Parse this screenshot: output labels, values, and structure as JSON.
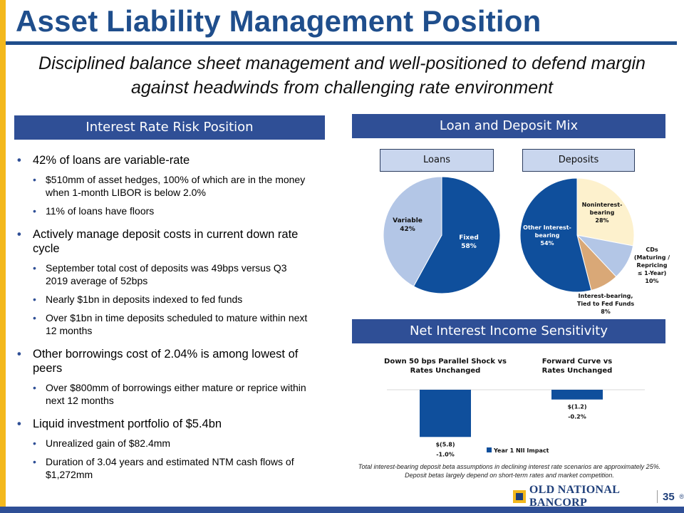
{
  "title": "Asset Liability Management Position",
  "subtitle": "Disciplined balance sheet management and well-positioned to defend margin against headwinds from challenging rate environment",
  "headers": {
    "interest_rate_risk": "Interest Rate Risk Position",
    "loan_deposit_mix": "Loan and Deposit Mix",
    "nii_sensitivity": "Net Interest Income Sensitivity"
  },
  "bullets": [
    {
      "text": "42% of loans are variable-rate",
      "subs": [
        "$510mm of asset hedges, 100% of which are in the money when 1-month LIBOR is below 2.0%",
        "11% of loans have floors"
      ]
    },
    {
      "text": "Actively manage deposit costs in current down rate cycle",
      "subs": [
        "September total cost of deposits was 49bps versus Q3 2019 average of 52bps",
        "Nearly $1bn in deposits indexed to fed funds",
        "Over $1bn in time deposits scheduled to mature within next 12 months"
      ]
    },
    {
      "text": "Other borrowings cost of 2.04% is among lowest of peers",
      "subs": [
        "Over $800mm of borrowings either mature or reprice within next 12 months"
      ]
    },
    {
      "text": "Liquid investment portfolio of $5.4bn",
      "subs": [
        "Unrealized gain of $82.4mm",
        "Duration of 3.04 years and estimated NTM cash flows of $1,272mm"
      ]
    }
  ],
  "chart_data": [
    {
      "type": "pie",
      "title": "Loans",
      "slices": [
        {
          "label": "Fixed",
          "value": 58,
          "display": "58%",
          "color": "#0f4f9c"
        },
        {
          "label": "Variable",
          "value": 42,
          "display": "42%",
          "color": "#b3c6e6"
        }
      ]
    },
    {
      "type": "pie",
      "title": "Deposits",
      "slices": [
        {
          "label": "Noninterest-bearing",
          "value": 28,
          "display": "28%",
          "color": "#fdf1cd"
        },
        {
          "label": "CDs (Maturing / Repricing ≤ 1-Year)",
          "value": 10,
          "display": "10%",
          "color": "#b3c6e6"
        },
        {
          "label": "Interest-bearing, Tied to Fed Funds",
          "value": 8,
          "display": "8%",
          "color": "#d9a877"
        },
        {
          "label": "Other Interest-bearing",
          "value": 54,
          "display": "54%",
          "color": "#0f4f9c"
        }
      ]
    },
    {
      "type": "bar",
      "categories": [
        "Down 50 bps Parallel Shock vs Rates Unchanged",
        "Forward Curve vs Rates Unchanged"
      ],
      "series": [
        {
          "name": "Year 1 NII Impact",
          "values": [
            -5.8,
            -1.2
          ],
          "color": "#0f4f9c"
        }
      ],
      "value_labels": [
        "$(5.8)",
        "$(1.2)"
      ],
      "pct_labels": [
        "-1.0%",
        "-0.2%"
      ],
      "ylim": [
        -7,
        0
      ]
    }
  ],
  "footnote": "Total interest-bearing deposit beta assumptions in declining interest rate scenarios are approximately 25%.  Deposit betas largely depend on short-term rates and market competition.",
  "footer": {
    "logo_text": "OLD NATIONAL BANCORP",
    "trademark": "®",
    "page_number": "35"
  }
}
